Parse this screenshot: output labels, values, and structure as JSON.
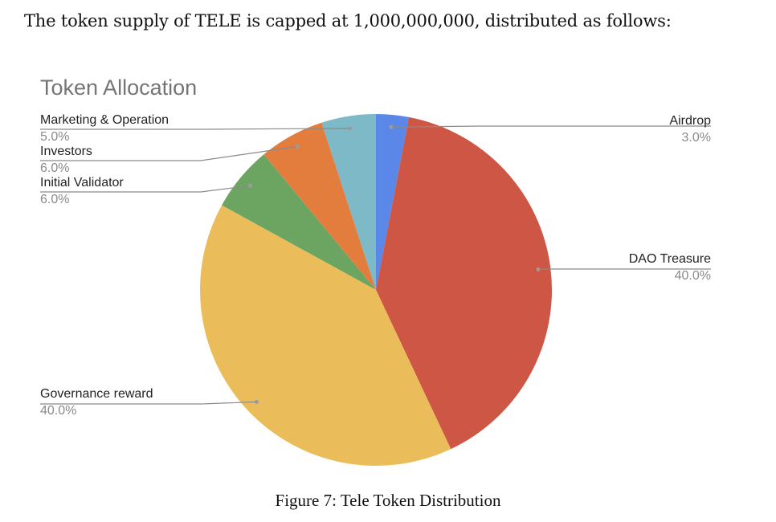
{
  "intro_text": "The token supply of TELE is capped at 1,000,000,000, distributed as follows:",
  "caption": "Figure 7: Tele Token Distribution",
  "chart_data": {
    "type": "pie",
    "title": "Token Allocation",
    "slices": [
      {
        "label": "Airdrop",
        "value": 3.0,
        "display": "3.0%",
        "color": "#5B87E8"
      },
      {
        "label": "DAO Treasure",
        "value": 40.0,
        "display": "40.0%",
        "color": "#CD5645"
      },
      {
        "label": "Governance reward",
        "value": 40.0,
        "display": "40.0%",
        "color": "#EBBD5A"
      },
      {
        "label": "Initial Validator",
        "value": 6.0,
        "display": "6.0%",
        "color": "#6CA562"
      },
      {
        "label": "Investors",
        "value": 6.0,
        "display": "6.0%",
        "color": "#E27D3E"
      },
      {
        "label": "Marketing & Operation",
        "value": 5.0,
        "display": "5.0%",
        "color": "#7DB9C6"
      }
    ],
    "start_angle": "12 o'clock",
    "direction": "clockwise",
    "legend": "none",
    "data_labels": "outside with leader lines"
  }
}
